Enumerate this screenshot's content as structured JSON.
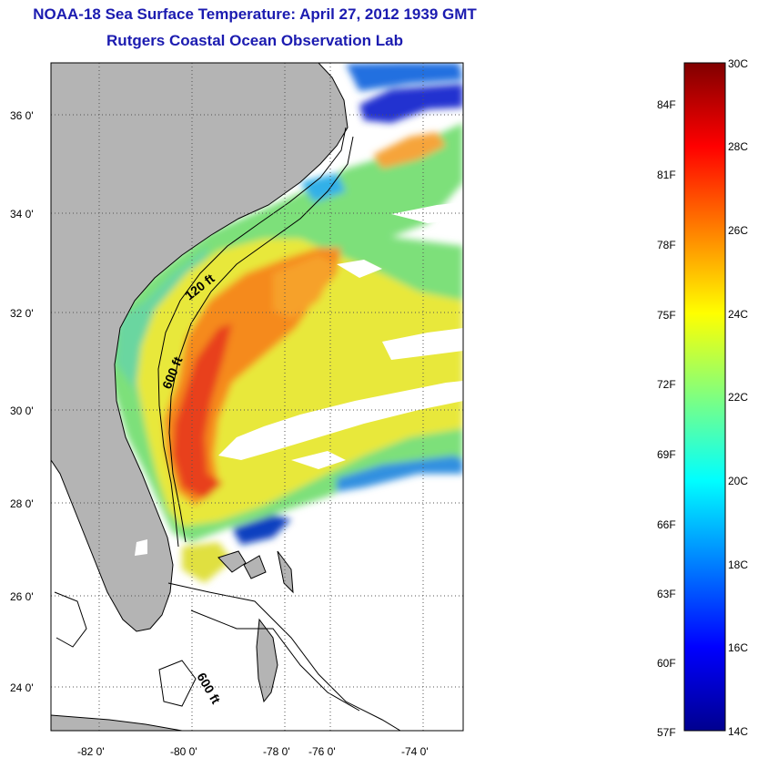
{
  "header": {
    "title": "NOAA-18 Sea Surface Temperature:  April 27, 2012 1939 GMT",
    "subtitle": "Rutgers Coastal Ocean Observation Lab"
  },
  "map": {
    "lat_ticks": [
      "36 0'",
      "34 0'",
      "32 0'",
      "30 0'",
      "28 0'",
      "26 0'",
      "24 0'"
    ],
    "lon_ticks": [
      "-82 0'",
      "-80 0'",
      "-78 0'",
      "-76 0'",
      "-74 0'"
    ],
    "contour_labels": [
      "120 ft",
      "600 ft",
      "600 ft"
    ],
    "colors": {
      "land": "#b4b4b4",
      "ocean_missing": "#ffffff"
    }
  },
  "colorbar": {
    "celsius_labels": [
      "30C",
      "28C",
      "26C",
      "24C",
      "22C",
      "20C",
      "18C",
      "16C",
      "14C"
    ],
    "fahrenheit_labels": [
      "84F",
      "81F",
      "78F",
      "75F",
      "72F",
      "69F",
      "66F",
      "63F",
      "60F",
      "57F"
    ],
    "colormap": "jet"
  }
}
